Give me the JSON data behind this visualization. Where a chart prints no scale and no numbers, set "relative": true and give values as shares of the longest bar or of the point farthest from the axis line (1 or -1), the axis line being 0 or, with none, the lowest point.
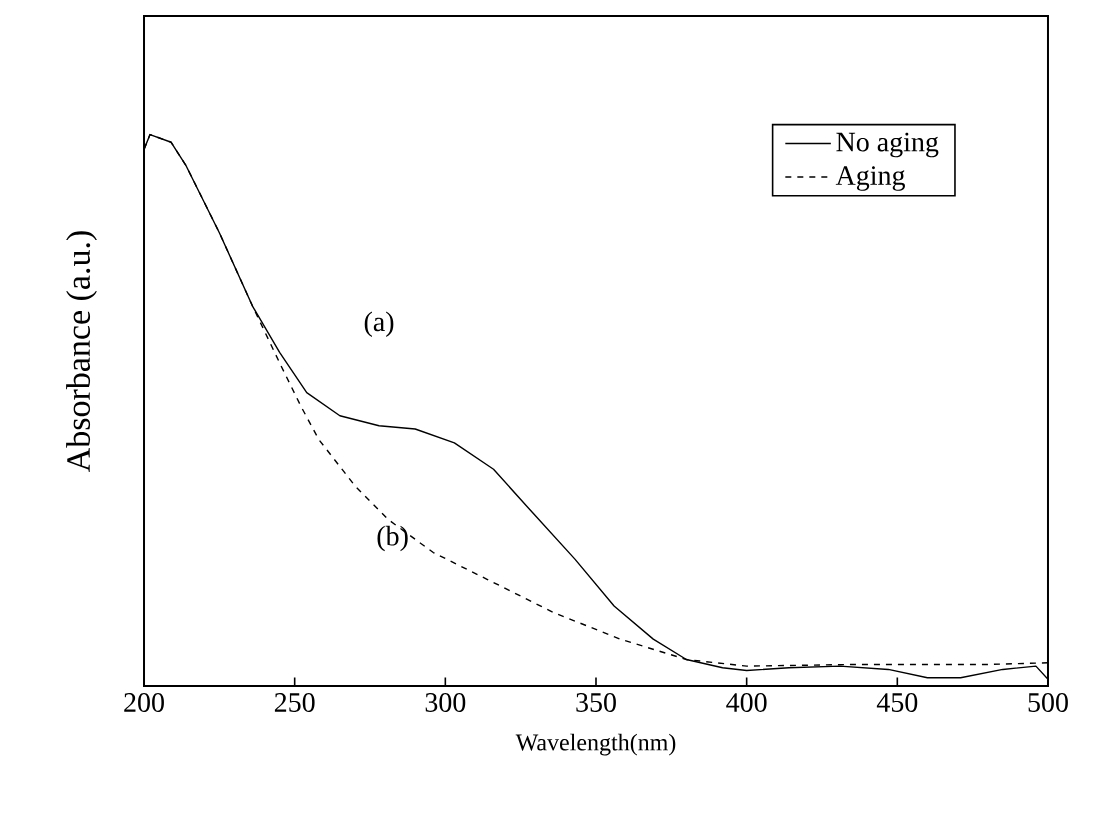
{
  "chart_data": {
    "type": "line",
    "relative": true,
    "xlabel": "Wavelength(nm)",
    "ylabel": "Absorbance (a.u.)",
    "xlim": [
      200,
      500
    ],
    "xticks": [
      200,
      250,
      300,
      350,
      400,
      450,
      500
    ],
    "legend": "top right",
    "grid": false,
    "series": [
      {
        "name": "No aging",
        "color": "#000000",
        "line_style": "solid",
        "x": [
          200,
          202,
          209,
          214,
          225,
          236,
          245,
          254,
          265,
          278,
          290,
          303,
          316,
          329,
          343,
          356,
          369,
          380,
          392,
          400,
          414,
          431,
          447,
          460,
          471,
          485,
          496,
          500
        ],
        "values": [
          0.973,
          1.0,
          0.986,
          0.943,
          0.822,
          0.689,
          0.605,
          0.532,
          0.49,
          0.472,
          0.466,
          0.441,
          0.393,
          0.314,
          0.23,
          0.145,
          0.085,
          0.048,
          0.033,
          0.028,
          0.033,
          0.036,
          0.03,
          0.015,
          0.015,
          0.03,
          0.036,
          0.012
        ]
      },
      {
        "name": "Aging",
        "color": "#000000",
        "line_style": "dashed",
        "x": [
          200,
          202,
          209,
          214,
          225,
          236,
          245,
          252,
          258,
          270,
          281,
          296,
          314,
          336,
          358,
          380,
          400,
          436,
          480,
          500
        ],
        "values": [
          0.973,
          1.0,
          0.986,
          0.943,
          0.822,
          0.689,
          0.586,
          0.508,
          0.447,
          0.363,
          0.302,
          0.242,
          0.193,
          0.133,
          0.085,
          0.048,
          0.036,
          0.039,
          0.039,
          0.042
        ]
      }
    ],
    "annotations": [
      "(a)",
      "(b)"
    ]
  }
}
